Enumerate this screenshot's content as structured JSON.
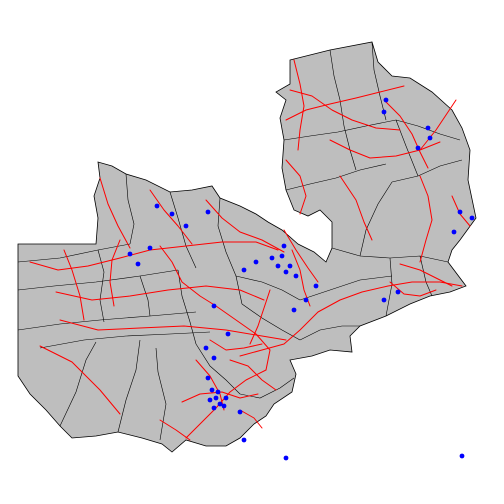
{
  "map": {
    "country_fill": "#bebebe",
    "boundary_color": "#000000",
    "road_color": "#ff0000",
    "point_color": "#0000ff",
    "layers": [
      "district-boundaries",
      "roads",
      "point-locations"
    ]
  }
}
